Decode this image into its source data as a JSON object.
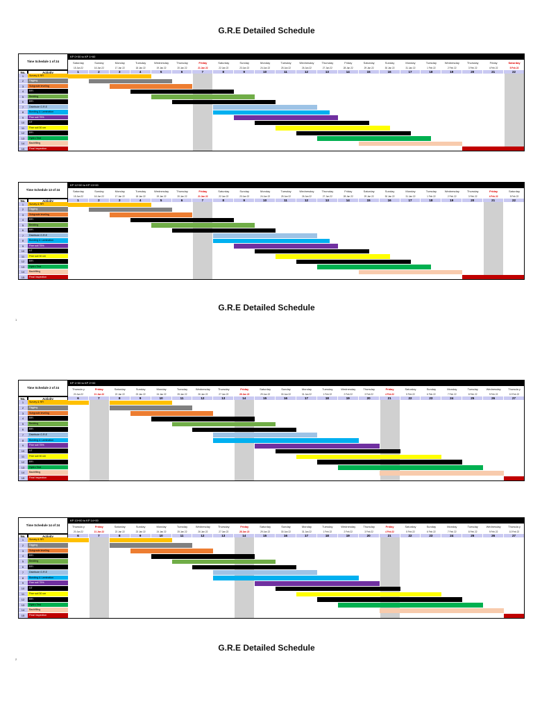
{
  "page_titles": [
    "G.R.E Detailed Schedule",
    "G.R.E Detailed Schedule",
    "G.R.E Detailed Schedule"
  ],
  "page_numbers": [
    "1",
    "2"
  ],
  "activities": [
    {
      "no": "1",
      "name": "Survey & RFI",
      "color": "#ffc000"
    },
    {
      "no": "2",
      "name": "Digging",
      "color": "#808080"
    },
    {
      "no": "3",
      "name": "Subgrade leveling",
      "color": "#ed7d31"
    },
    {
      "no": "4",
      "name": "RFI",
      "color": "#000000"
    },
    {
      "no": "5",
      "name": "Bedding",
      "color": "#70ad47"
    },
    {
      "no": "6",
      "name": "RFI",
      "color": "#000000"
    },
    {
      "no": "7",
      "name": "Distribute G.R.E",
      "color": "#9dc3e6"
    },
    {
      "no": "8",
      "name": "Bonding & Lamination",
      "color": "#00b0f0"
    },
    {
      "no": "9",
      "name": "Fine soil 75%",
      "color": "#7030a0"
    },
    {
      "no": "10",
      "name": "VT",
      "color": "#000000"
    },
    {
      "no": "11",
      "name": "Fine soil 30 cm",
      "color": "#ffff00"
    },
    {
      "no": "12",
      "name": "RFI",
      "color": "#000000"
    },
    {
      "no": "13",
      "name": "Hydro Test",
      "color": "#00b050"
    },
    {
      "no": "14",
      "name": "Backfilling",
      "color": "#f8cbad"
    },
    {
      "no": "15",
      "name": "Final Inspection",
      "color": "#c00000"
    }
  ],
  "headers": {
    "no": "No.",
    "activity": "Activity"
  },
  "schedules": [
    {
      "title": "Time Schedule 1 of 24",
      "kp": "KP 0+00  to KP 1+60",
      "friday": [
        6,
        21
      ],
      "days": [
        "Saturday",
        "Sunday",
        "Monday",
        "Tuesday",
        "Wednesday",
        "Thursday",
        "Friday",
        "Saturday",
        "Sunday",
        "Monday",
        "Tuesday",
        "Wednesday",
        "Thursday",
        "Friday",
        "Saturday",
        "Sunday",
        "Monday",
        "Tuesday",
        "Wednesday",
        "Thursday",
        "Friday",
        "Saturday"
      ],
      "dates": [
        "15 Jan 22",
        "16 Jan 22",
        "17 Jan 22",
        "18 Jan 22",
        "19 Jan 22",
        "20 Jan 22",
        "21 Jan 22",
        "22 Jan 22",
        "23 Jan 22",
        "24 Jan 22",
        "25 Jan 22",
        "26 Jan 22",
        "27 Jan 22",
        "28 Jan 22",
        "29 Jan 22",
        "30 Jan 22",
        "31 Jan 22",
        "1 Feb 22",
        "2 Feb 22",
        "3 Feb 22",
        "4 Feb 22",
        "5 Feb 22"
      ],
      "nums": [
        "1",
        "2",
        "3",
        "4",
        "5",
        "6",
        "7",
        "8",
        "9",
        "10",
        "11",
        "12",
        "13",
        "14",
        "15",
        "16",
        "17",
        "18",
        "19",
        "20",
        "21",
        "22"
      ],
      "bars": [
        [
          0,
          0,
          4
        ],
        [
          1,
          1,
          5
        ],
        [
          2,
          2,
          6
        ],
        [
          3,
          3,
          8
        ],
        [
          4,
          4,
          9
        ],
        [
          5,
          5,
          10
        ],
        [
          6,
          7,
          12
        ],
        [
          7,
          7,
          12.6
        ],
        [
          8,
          8,
          13
        ],
        [
          9,
          9,
          14.5
        ],
        [
          10,
          10,
          15.5
        ],
        [
          11,
          11,
          16.5
        ],
        [
          12,
          12,
          17.5
        ],
        [
          13,
          14,
          19
        ],
        [
          14,
          19,
          22
        ]
      ]
    },
    {
      "title": "Time Schedule 13 of 24",
      "kp": "KP 12+00  to KP 13+00",
      "friday": [
        6,
        20
      ],
      "days": [
        "Saturday",
        "Sunday",
        "Monday",
        "Tuesday",
        "Wednesday",
        "Thursday",
        "Friday",
        "Saturday",
        "Sunday",
        "Monday",
        "Tuesday",
        "Wednesday",
        "Thursday",
        "Friday",
        "Saturday",
        "Sunday",
        "Monday",
        "Tuesday",
        "Wednesday",
        "Thursday",
        "Friday",
        "Saturday"
      ],
      "dates": [
        "15 Jan 22",
        "16 Jan 22",
        "17 Jan 22",
        "18 Jan 22",
        "19 Jan 22",
        "20 Jan 22",
        "21 Jan 22",
        "22 Jan 22",
        "23 Jan 22",
        "24 Jan 22",
        "25 Jan 22",
        "26 Jan 22",
        "27 Jan 22",
        "28 Jan 22",
        "29 Jan 22",
        "30 Jan 22",
        "31 Jan 22",
        "1 Feb 22",
        "2 Feb 22",
        "3 Feb 22",
        "4 Feb 22",
        "5 Feb 22"
      ],
      "nums": [
        "1",
        "2",
        "3",
        "4",
        "5",
        "6",
        "7",
        "8",
        "9",
        "10",
        "11",
        "12",
        "13",
        "14",
        "15",
        "16",
        "17",
        "18",
        "19",
        "20",
        "21",
        "22"
      ],
      "bars": [
        [
          0,
          0,
          4
        ],
        [
          1,
          1,
          5
        ],
        [
          2,
          2,
          6
        ],
        [
          3,
          3,
          8
        ],
        [
          4,
          4,
          9
        ],
        [
          5,
          5,
          10
        ],
        [
          6,
          7,
          12
        ],
        [
          7,
          7,
          12.6
        ],
        [
          8,
          8,
          13
        ],
        [
          9,
          9,
          14.5
        ],
        [
          10,
          10,
          15.5
        ],
        [
          11,
          11,
          16.5
        ],
        [
          12,
          12,
          17.5
        ],
        [
          13,
          14,
          19
        ],
        [
          14,
          19,
          22
        ]
      ]
    },
    {
      "title": "Time Schedule 2 of 24",
      "kp": "KP 1+00  to KP 2+00",
      "friday": [
        1,
        8,
        15
      ],
      "days": [
        "Thursda y",
        "Friday",
        "Saturday",
        "Sunday",
        "Monday",
        "Tuesday",
        "Wednesday",
        "Thursday",
        "Friday",
        "Saturday",
        "Sunday",
        "Monday",
        "Tuesday",
        "Wednesday",
        "Thursday",
        "Friday",
        "Saturday",
        "Sunday",
        "Monday",
        "Tuesday",
        "Wednesday",
        "Thursda y"
      ],
      "dates": [
        "20 Jan 22",
        "21 Jan 22",
        "22 Jan 22",
        "23 Jan 22",
        "24 Jan 22",
        "25 Jan 22",
        "26 Jan 22",
        "27 Jan 22",
        "28 Jan 22",
        "29 Jan 22",
        "30 Jan 22",
        "31 Jan 22",
        "1 Feb 22",
        "2 Feb 22",
        "3 Feb 22",
        "4 Feb 22",
        "5 Feb 22",
        "6 Feb 22",
        "7 Feb 22",
        "8 Feb 22",
        "9 Feb 22",
        "10 Feb 22"
      ],
      "nums": [
        "6",
        "7",
        "8",
        "9",
        "10",
        "11",
        "12",
        "13",
        "14",
        "15",
        "16",
        "17",
        "18",
        "19",
        "20",
        "21",
        "22",
        "23",
        "24",
        "25",
        "26",
        "27"
      ],
      "bars": [
        [
          0,
          0,
          1
        ],
        [
          0,
          2,
          5
        ],
        [
          1,
          2,
          6
        ],
        [
          2,
          3,
          7
        ],
        [
          3,
          4,
          9
        ],
        [
          4,
          5,
          10
        ],
        [
          5,
          6,
          11
        ],
        [
          6,
          7,
          12
        ],
        [
          7,
          7,
          14
        ],
        [
          8,
          9,
          15
        ],
        [
          9,
          10,
          16
        ],
        [
          10,
          11,
          18
        ],
        [
          11,
          12,
          19
        ],
        [
          12,
          13,
          20
        ],
        [
          13,
          15,
          21
        ],
        [
          14,
          21,
          22
        ]
      ]
    },
    {
      "title": "Time Schedule 14 of 24",
      "kp": "KP 13+00  to KP 14+00",
      "friday": [
        1,
        8,
        15
      ],
      "days": [
        "Thursda y",
        "Friday",
        "Saturday",
        "Sunday",
        "Monday",
        "Tuesday",
        "Wednesday",
        "Thursday",
        "Friday",
        "Saturday",
        "Sunday",
        "Monday",
        "Tuesday",
        "Wednesday",
        "Thursday",
        "Friday",
        "Saturday",
        "Sunday",
        "Monday",
        "Tuesday",
        "Wednesday",
        "Thursda y"
      ],
      "dates": [
        "20 Jan 22",
        "21 Jan 22",
        "22 Jan 22",
        "23 Jan 22",
        "24 Jan 22",
        "25 Jan 22",
        "26 Jan 22",
        "27 Jan 22",
        "28 Jan 22",
        "29 Jan 22",
        "30 Jan 22",
        "31 Jan 22",
        "1 Feb 22",
        "2 Feb 22",
        "3 Feb 22",
        "4 Feb 22",
        "5 Feb 22",
        "6 Feb 22",
        "7 Feb 22",
        "8 Feb 22",
        "9 Feb 22",
        "10 Feb 22"
      ],
      "nums": [
        "6",
        "7",
        "8",
        "9",
        "10",
        "11",
        "12",
        "13",
        "14",
        "15",
        "16",
        "17",
        "18",
        "19",
        "20",
        "21",
        "22",
        "23",
        "24",
        "25",
        "26",
        "27"
      ],
      "bars": [
        [
          0,
          0,
          1
        ],
        [
          0,
          2,
          5
        ],
        [
          1,
          2,
          6
        ],
        [
          2,
          3,
          7
        ],
        [
          3,
          4,
          9
        ],
        [
          4,
          5,
          10
        ],
        [
          5,
          6,
          11
        ],
        [
          6,
          7,
          12
        ],
        [
          7,
          7,
          14
        ],
        [
          8,
          9,
          15
        ],
        [
          9,
          10,
          16
        ],
        [
          10,
          11,
          18
        ],
        [
          11,
          12,
          19
        ],
        [
          12,
          13,
          20
        ],
        [
          13,
          15,
          21
        ],
        [
          14,
          21,
          22
        ]
      ]
    }
  ]
}
